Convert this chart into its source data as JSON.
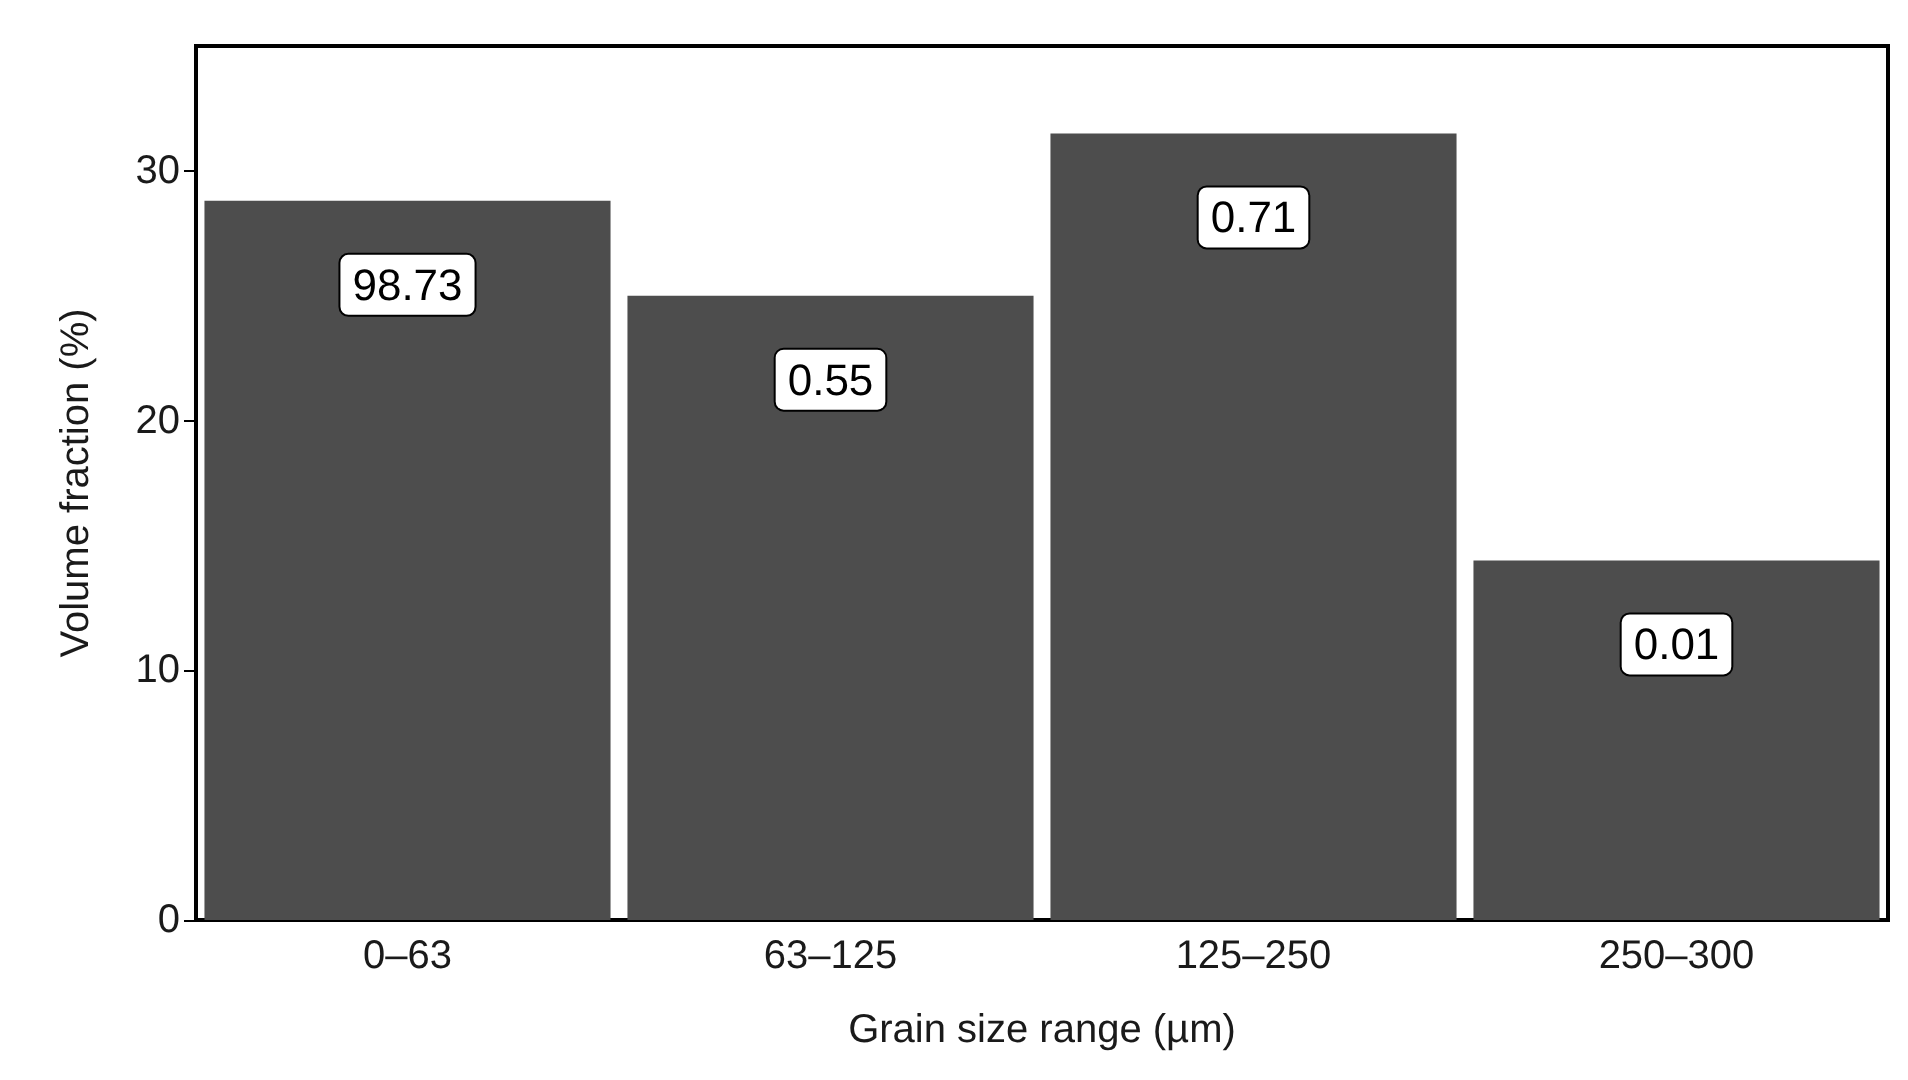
{
  "chart_data": {
    "type": "bar",
    "xlabel": "Grain size range (µm)",
    "ylabel": "Volume fraction (%)",
    "categories": [
      "0–63",
      "63–125",
      "125–250",
      "250–300"
    ],
    "values": [
      28.8,
      25.0,
      31.5,
      14.4
    ],
    "color": "#4d4d4d",
    "annotations": [
      "98.73",
      "0.55",
      "0.71",
      "0.01"
    ],
    "ylim": [
      0,
      35
    ],
    "yticks": [
      0,
      10,
      20,
      30
    ],
    "grid": false
  }
}
